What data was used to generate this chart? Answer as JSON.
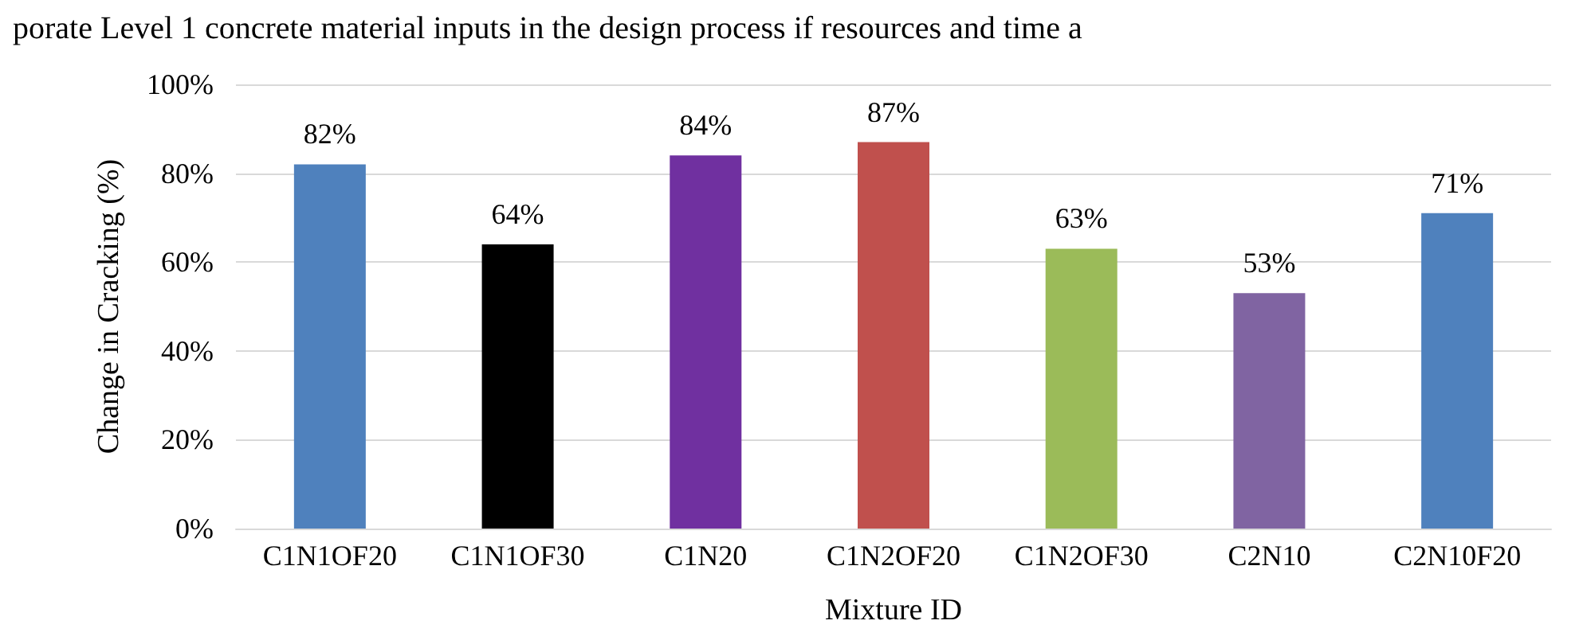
{
  "chart_data": {
    "type": "bar",
    "xlabel": "Mixture ID",
    "ylabel": "Change in Cracking (%)",
    "annotations": [
      "porate Level 1 concrete material inputs in the design process if resources and time a"
    ],
    "categories": [
      "C1N1OF20",
      "C1N1OF30",
      "C1N20",
      "C1N2OF20",
      "C1N2OF30",
      "C2N10",
      "C2N10F20"
    ],
    "values": [
      82,
      64,
      84,
      87,
      63,
      53,
      71
    ],
    "value_labels": [
      "82%",
      "64%",
      "84%",
      "87%",
      "63%",
      "53%",
      "71%"
    ],
    "colors": [
      "#4f81bd",
      "#000000",
      "#7030a0",
      "#c0504d",
      "#9bbb59",
      "#8064a2",
      "#4f81bd"
    ],
    "ylim": [
      0,
      100
    ],
    "yticks": [
      {
        "value": 0,
        "label": "0%"
      },
      {
        "value": 20,
        "label": "20%"
      },
      {
        "value": 40,
        "label": "40%"
      },
      {
        "value": 60,
        "label": "60%"
      },
      {
        "value": 80,
        "label": "80%"
      },
      {
        "value": 100,
        "label": "100%"
      }
    ],
    "grid": "y"
  }
}
